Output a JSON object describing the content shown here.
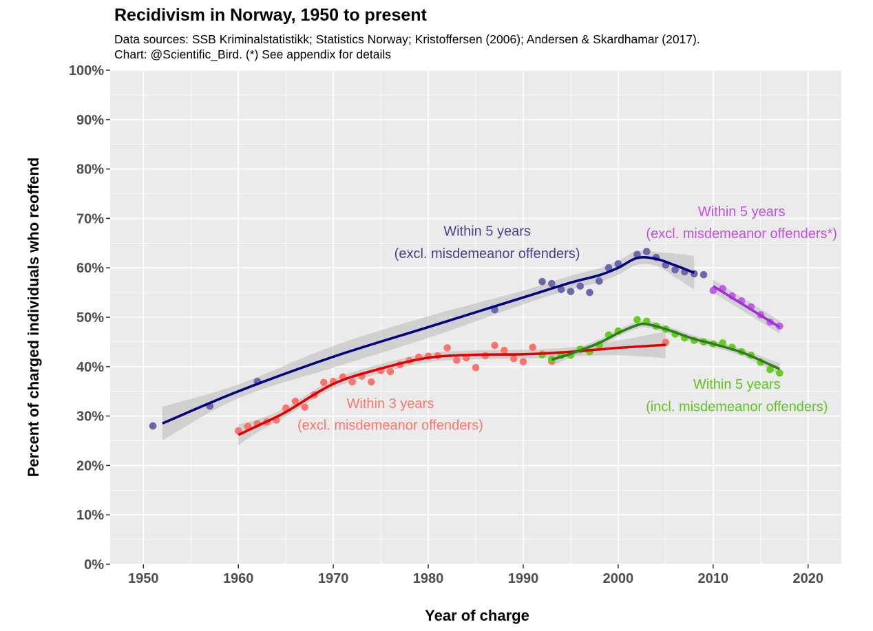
{
  "header": {
    "title": "Recidivism in Norway, 1950 to present",
    "subtitle_line1": "Data sources: SSB Kriminalstatistikk; Statistics Norway; Kristoffersen (2006); Andersen & Skardhamar (2017).",
    "subtitle_line2": "Chart: @Scientific_Bird. (*) See appendix for details"
  },
  "chart_data": {
    "type": "scatter",
    "xlabel": "Year of charge",
    "ylabel": "Percent of charged individuals who reoffend",
    "xlim": [
      1946.5,
      2023.5
    ],
    "ylim": [
      0,
      100
    ],
    "x_ticks": [
      1950,
      1960,
      1970,
      1980,
      1990,
      2000,
      2010,
      2020
    ],
    "y_ticks": [
      0,
      10,
      20,
      30,
      40,
      50,
      60,
      70,
      80,
      90,
      100
    ],
    "y_tick_labels": [
      "0%",
      "10%",
      "20%",
      "30%",
      "40%",
      "50%",
      "60%",
      "70%",
      "80%",
      "90%",
      "100%"
    ],
    "x_tick_labels": [
      "1950",
      "1960",
      "1970",
      "1980",
      "1990",
      "2000",
      "2010",
      "2020"
    ],
    "grid": true,
    "series": [
      {
        "point_color": "#6b67a8",
        "line_color": "#000080",
        "points": [
          [
            1951,
            28.0
          ],
          [
            1957,
            32.0
          ],
          [
            1962,
            37.0
          ],
          [
            1987,
            51.5
          ],
          [
            1992,
            57.2
          ],
          [
            1993,
            56.8
          ],
          [
            1994,
            55.6
          ],
          [
            1995,
            55.2
          ],
          [
            1996,
            56.3
          ],
          [
            1997,
            55.0
          ],
          [
            1998,
            57.3
          ],
          [
            1999,
            60.0
          ],
          [
            2000,
            60.8
          ],
          [
            2002,
            62.7
          ],
          [
            2003,
            63.3
          ],
          [
            2004,
            62.1
          ],
          [
            2005,
            60.6
          ],
          [
            2006,
            59.6
          ],
          [
            2007,
            59.2
          ],
          [
            2008,
            58.8
          ],
          [
            2009,
            58.6
          ]
        ],
        "smooth": [
          [
            1952,
            28.5
          ],
          [
            1960,
            35.0
          ],
          [
            1970,
            42.0
          ],
          [
            1980,
            48.0
          ],
          [
            1990,
            54.0
          ],
          [
            1995,
            57.0
          ],
          [
            1998,
            58.5
          ],
          [
            2000,
            60.0
          ],
          [
            2002,
            62.0
          ],
          [
            2004,
            61.8
          ],
          [
            2006,
            60.5
          ],
          [
            2008,
            59.0
          ]
        ]
      },
      {
        "point_color": "#f8766d",
        "line_color": "#e00000",
        "points": [
          [
            1960,
            27.0
          ],
          [
            1961,
            27.9
          ],
          [
            1962,
            28.4
          ],
          [
            1963,
            28.8
          ],
          [
            1964,
            29.2
          ],
          [
            1965,
            31.6
          ],
          [
            1966,
            33.0
          ],
          [
            1967,
            31.8
          ],
          [
            1968,
            34.3
          ],
          [
            1969,
            36.8
          ],
          [
            1970,
            37.0
          ],
          [
            1971,
            37.9
          ],
          [
            1972,
            36.9
          ],
          [
            1973,
            38.1
          ],
          [
            1974,
            36.9
          ],
          [
            1975,
            39.2
          ],
          [
            1976,
            39.0
          ],
          [
            1977,
            40.4
          ],
          [
            1978,
            41.2
          ],
          [
            1979,
            41.9
          ],
          [
            1980,
            42.1
          ],
          [
            1981,
            42.2
          ],
          [
            1982,
            43.8
          ],
          [
            1983,
            41.3
          ],
          [
            1984,
            41.8
          ],
          [
            1985,
            39.8
          ],
          [
            1986,
            42.2
          ],
          [
            1987,
            44.3
          ],
          [
            1988,
            43.3
          ],
          [
            1989,
            41.6
          ],
          [
            1990,
            41.0
          ],
          [
            1991,
            43.9
          ],
          [
            1992,
            42.5
          ],
          [
            1993,
            41.1
          ],
          [
            1996,
            43.5
          ],
          [
            2005,
            44.9
          ]
        ],
        "smooth": [
          [
            1960,
            26.2
          ],
          [
            1962,
            28.0
          ],
          [
            1965,
            30.8
          ],
          [
            1970,
            36.5
          ],
          [
            1975,
            39.6
          ],
          [
            1980,
            41.8
          ],
          [
            1985,
            42.4
          ],
          [
            1990,
            42.5
          ],
          [
            1995,
            43.0
          ],
          [
            2000,
            43.8
          ],
          [
            2005,
            44.4
          ]
        ]
      },
      {
        "point_color": "#66cc22",
        "line_color": "#2e7d1a",
        "points": [
          [
            1992,
            42.4
          ],
          [
            1993,
            41.5
          ],
          [
            1994,
            42.3
          ],
          [
            1995,
            42.3
          ],
          [
            1996,
            43.5
          ],
          [
            1997,
            43.0
          ],
          [
            1998,
            44.4
          ],
          [
            1999,
            46.4
          ],
          [
            2000,
            47.2
          ],
          [
            2002,
            49.5
          ],
          [
            2003,
            49.2
          ],
          [
            2004,
            48.2
          ],
          [
            2005,
            47.6
          ],
          [
            2006,
            46.6
          ],
          [
            2007,
            45.8
          ],
          [
            2008,
            45.3
          ],
          [
            2009,
            45.0
          ],
          [
            2010,
            44.6
          ],
          [
            2011,
            44.8
          ],
          [
            2012,
            43.9
          ],
          [
            2013,
            43.0
          ],
          [
            2014,
            42.3
          ],
          [
            2015,
            40.9
          ],
          [
            2016,
            39.4
          ],
          [
            2017,
            38.7
          ]
        ],
        "smooth": [
          [
            1993,
            41.4
          ],
          [
            1995,
            42.6
          ],
          [
            1998,
            44.8
          ],
          [
            2000,
            46.8
          ],
          [
            2002,
            48.4
          ],
          [
            2003,
            48.6
          ],
          [
            2005,
            47.6
          ],
          [
            2008,
            45.6
          ],
          [
            2010,
            44.6
          ],
          [
            2013,
            42.9
          ],
          [
            2016,
            40.4
          ],
          [
            2017,
            39.5
          ]
        ]
      },
      {
        "point_color": "#c45ee8",
        "line_color": "#9a32cd",
        "points": [
          [
            2010,
            55.4
          ],
          [
            2011,
            55.8
          ],
          [
            2012,
            54.3
          ],
          [
            2013,
            53.3
          ],
          [
            2014,
            52.1
          ],
          [
            2015,
            50.5
          ],
          [
            2016,
            49.0
          ],
          [
            2017,
            48.2
          ]
        ],
        "smooth": [
          [
            2010,
            56.3
          ],
          [
            2017,
            48.0
          ]
        ]
      }
    ],
    "annotations": [
      {
        "line1": "Within 5 years",
        "line2": "(excl. misdemeanor offenders)",
        "color": "#4a3f8f",
        "x": 1986.2,
        "y1": 66.5,
        "y2": 62.0
      },
      {
        "line1": "Within 5 years",
        "line2": "(excl. misdemeanor offenders*)",
        "color": "#c24fe0",
        "x": 2013.0,
        "y1": 70.5,
        "y2": 66.0
      },
      {
        "line1": "Within 3 years",
        "line2": "(excl. misdemeanor offenders)",
        "color": "#f8766d",
        "x": 1976.0,
        "y1": 31.6,
        "y2": 27.2
      },
      {
        "line1": "Within 5 years",
        "line2": "(incl. misdemeanor offenders)",
        "color": "#5fc421",
        "x": 2012.5,
        "y1": 35.5,
        "y2": 31.0
      }
    ]
  }
}
